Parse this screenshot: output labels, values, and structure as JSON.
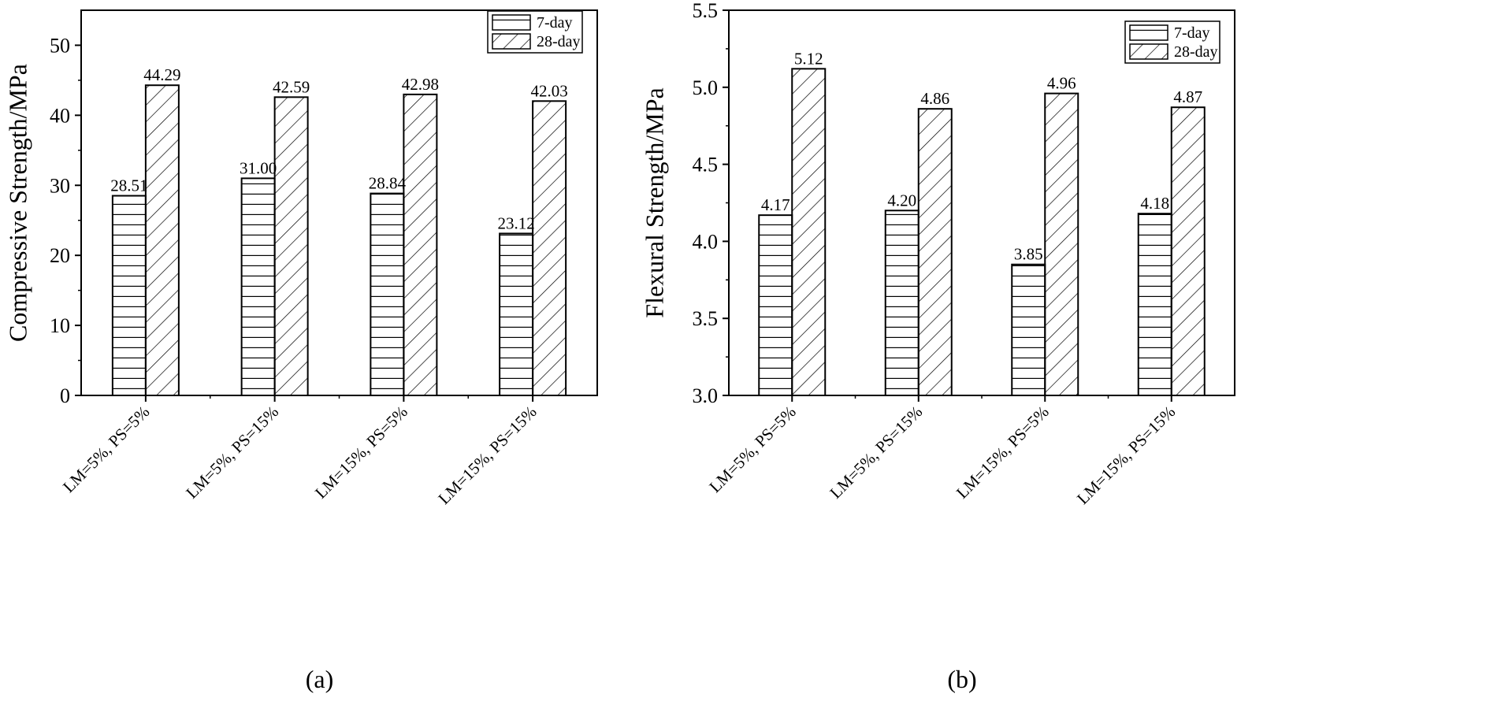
{
  "chart_data": [
    {
      "type": "bar",
      "panel_label": "(a)",
      "ylabel": "Compressive Strength/MPa",
      "xlabel": "",
      "ylim": [
        0,
        55
      ],
      "yticks": [
        0,
        10,
        20,
        30,
        40,
        50
      ],
      "ytick_labels": [
        "0",
        "10",
        "20",
        "30",
        "40",
        "50"
      ],
      "categories": [
        "LM=5%, PS=5%",
        "LM=5%, PS=15%",
        "LM=15%, PS=5%",
        "LM=15%, PS=15%"
      ],
      "series": [
        {
          "name": "7-day",
          "pattern": "horizontal",
          "values": [
            28.51,
            31.0,
            28.84,
            23.12
          ],
          "labels": [
            "28.51",
            "31.00",
            "28.84",
            "23.12"
          ]
        },
        {
          "name": "28-day",
          "pattern": "diagonal",
          "values": [
            44.29,
            42.59,
            42.98,
            42.03
          ],
          "labels": [
            "44.29",
            "42.59",
            "42.98",
            "42.03"
          ]
        }
      ],
      "legend": "top-right",
      "grid": false
    },
    {
      "type": "bar",
      "panel_label": "(b)",
      "ylabel": "Flexural Strength/MPa",
      "xlabel": "",
      "ylim": [
        3.0,
        5.5
      ],
      "yticks": [
        3.0,
        3.5,
        4.0,
        4.5,
        5.0,
        5.5
      ],
      "ytick_labels": [
        "3.0",
        "3.5",
        "4.0",
        "4.5",
        "5.0",
        "5.5"
      ],
      "categories": [
        "LM=5%, PS=5%",
        "LM=5%, PS=15%",
        "LM=15%, PS=5%",
        "LM=15%, PS=15%"
      ],
      "series": [
        {
          "name": "7-day",
          "pattern": "horizontal",
          "values": [
            4.17,
            4.2,
            3.85,
            4.18
          ],
          "labels": [
            "4.17",
            "4.20",
            "3.85",
            "4.18"
          ]
        },
        {
          "name": "28-day",
          "pattern": "diagonal",
          "values": [
            5.12,
            4.86,
            4.96,
            4.87
          ],
          "labels": [
            "5.12",
            "4.86",
            "4.96",
            "4.87"
          ]
        }
      ],
      "legend": "top-right",
      "grid": false
    }
  ]
}
